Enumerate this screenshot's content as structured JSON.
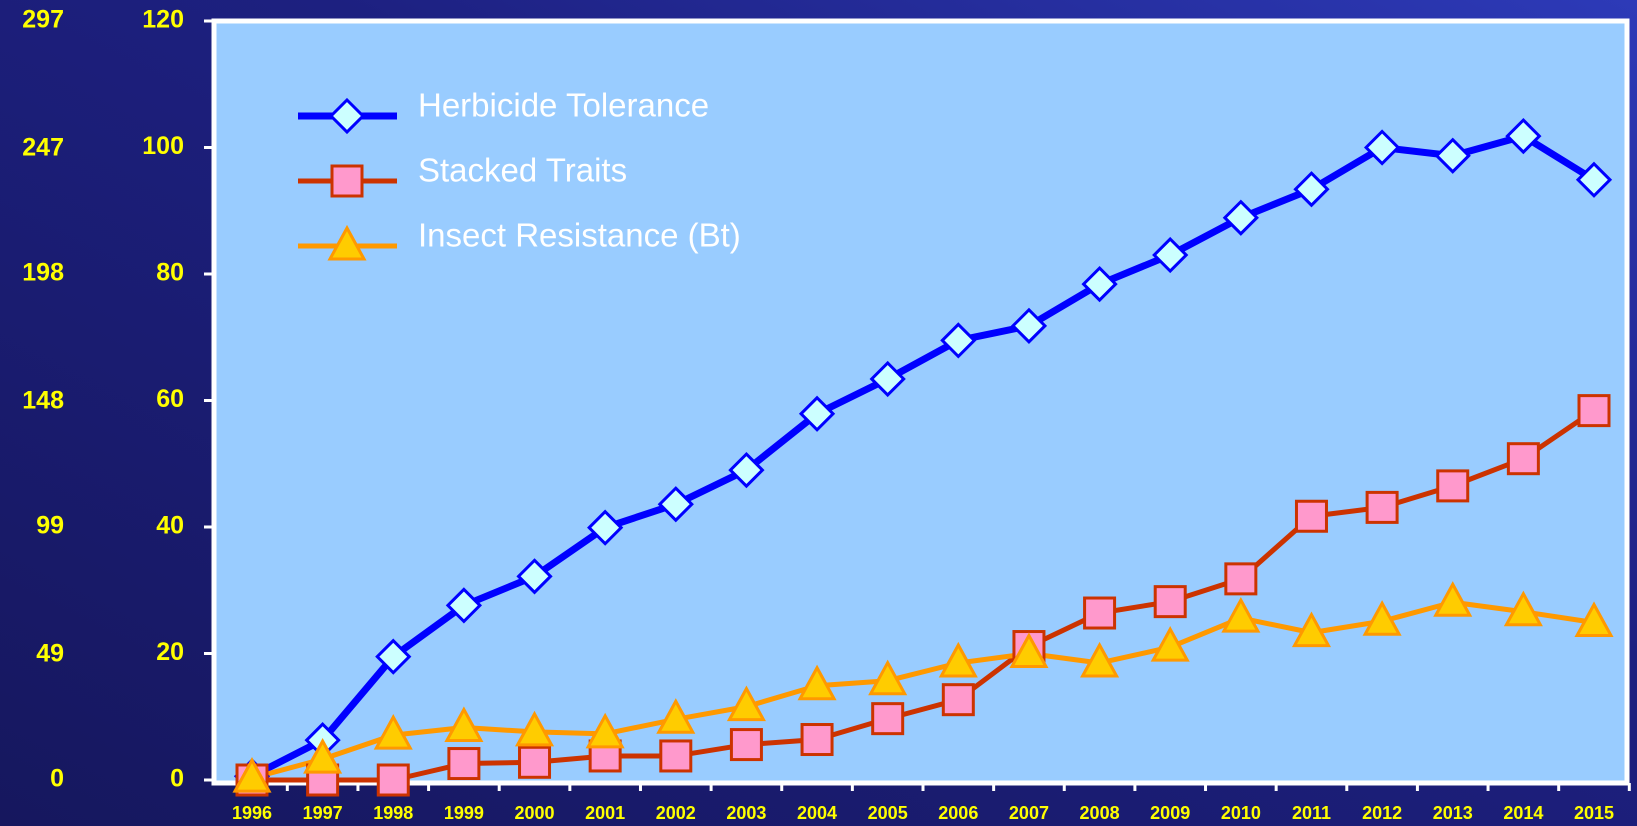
{
  "chart_data": {
    "type": "line",
    "categories": [
      "1996",
      "1997",
      "1998",
      "1999",
      "2000",
      "2001",
      "2002",
      "2003",
      "2004",
      "2005",
      "2006",
      "2007",
      "2008",
      "2009",
      "2010",
      "2011",
      "2012",
      "2013",
      "2014",
      "2015"
    ],
    "series": [
      {
        "name": "Herbicide Tolerance",
        "color": "#0000ff",
        "marker": "diamond",
        "marker_fill": "#ccffff",
        "values": [
          0.6,
          6.3,
          19.5,
          27.6,
          32.2,
          39.9,
          43.6,
          49.0,
          57.9,
          63.4,
          69.5,
          71.8,
          78.4,
          83.0,
          88.9,
          93.4,
          100.0,
          98.7,
          101.8,
          94.9
        ]
      },
      {
        "name": "Stacked Traits",
        "color": "#cc3300",
        "marker": "square",
        "marker_fill": "#ff99cc",
        "values": [
          0,
          0,
          0,
          2.6,
          2.8,
          3.8,
          3.8,
          5.6,
          6.4,
          9.7,
          12.7,
          21.1,
          26.4,
          28.2,
          31.8,
          41.7,
          43.1,
          46.5,
          50.8,
          58.4
        ]
      },
      {
        "name": "Insect Resistance (Bt)",
        "color": "#ff9900",
        "marker": "triangle",
        "marker_fill": "#ffcc00",
        "values": [
          0.3,
          3.3,
          7.1,
          8.3,
          7.6,
          7.3,
          9.6,
          11.6,
          14.9,
          15.7,
          18.5,
          20.0,
          18.5,
          21.0,
          25.6,
          23.3,
          25.1,
          28.1,
          26.6,
          24.9
        ]
      }
    ],
    "ylim": [
      0,
      120
    ],
    "yticks": [
      0,
      20,
      40,
      60,
      80,
      100,
      120
    ],
    "y2lim": [
      0,
      297
    ],
    "y2ticks": [
      0,
      49,
      99,
      148,
      198,
      247,
      297
    ]
  }
}
